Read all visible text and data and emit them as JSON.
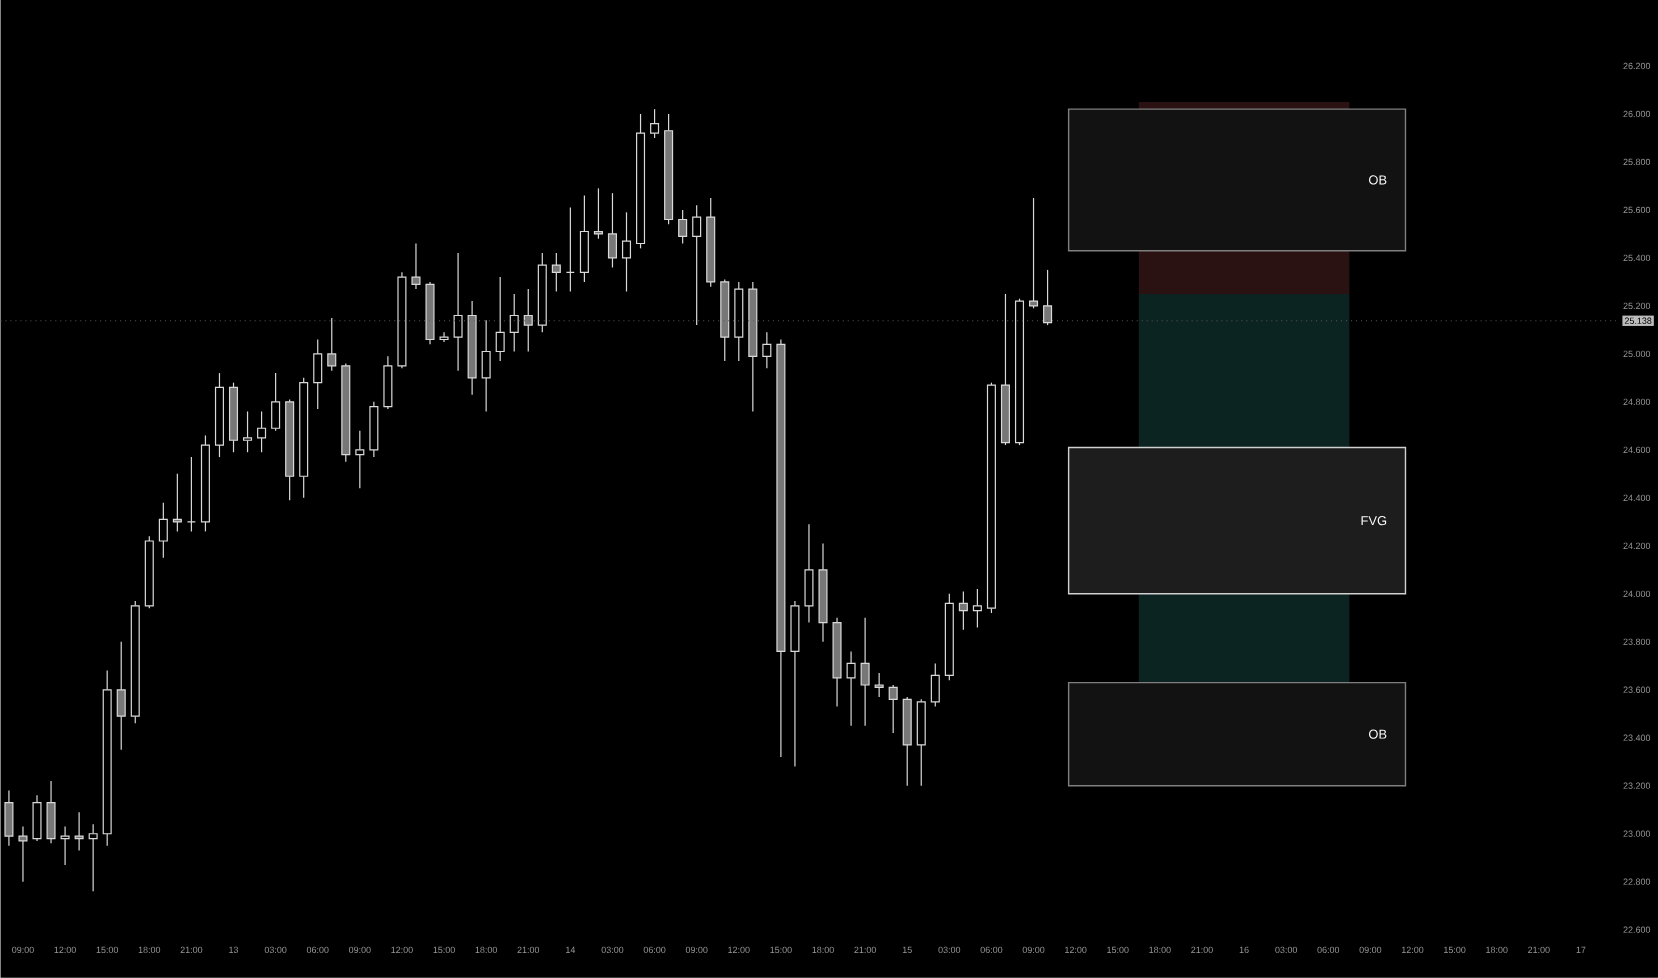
{
  "chart_data": {
    "type": "candlestick",
    "color": "#d9d9d9",
    "categories": [
      null,
      "09:00",
      null,
      null,
      "12:00",
      null,
      null,
      "15:00",
      null,
      null,
      "18:00",
      null,
      null,
      "21:00",
      null,
      null,
      "13",
      null,
      null,
      "03:00",
      null,
      null,
      "06:00",
      null,
      null,
      "09:00",
      null,
      null,
      "12:00",
      null,
      null,
      "15:00",
      null,
      null,
      "18:00",
      null,
      null,
      "21:00",
      null,
      null,
      "14",
      null,
      null,
      "03:00",
      null,
      null,
      "06:00",
      null,
      null,
      "09:00",
      null,
      null,
      "12:00",
      null,
      null,
      "15:00",
      null,
      null,
      "18:00",
      null,
      null,
      "21:00",
      null,
      null,
      "15",
      null,
      null,
      "03:00",
      null,
      null,
      "06:00",
      null,
      null,
      "09:00",
      null,
      null,
      "12:00",
      null,
      null,
      "15:00",
      null,
      null,
      "18:00",
      null,
      null,
      "21:00",
      null,
      null,
      "16",
      null,
      null,
      "03:00",
      null,
      null,
      "06:00",
      null,
      null,
      "09:00",
      null,
      null,
      "12:00",
      null,
      null,
      "15:00",
      null,
      null,
      "18:00",
      null,
      null,
      "21:00",
      null,
      null,
      "17",
      null,
      null
    ],
    "ohlc": [
      [
        23.13,
        23.18,
        22.95,
        22.99
      ],
      [
        22.99,
        23.03,
        22.8,
        22.97
      ],
      [
        22.98,
        23.16,
        22.97,
        23.13
      ],
      [
        23.13,
        23.22,
        22.96,
        22.98
      ],
      [
        22.98,
        23.03,
        22.87,
        22.99
      ],
      [
        22.99,
        23.09,
        22.93,
        22.98
      ],
      [
        22.98,
        23.04,
        22.76,
        23.0
      ],
      [
        23.0,
        23.68,
        22.95,
        23.6
      ],
      [
        23.6,
        23.8,
        23.35,
        23.49
      ],
      [
        23.49,
        23.97,
        23.46,
        23.95
      ],
      [
        23.95,
        24.24,
        23.94,
        24.22
      ],
      [
        24.22,
        24.38,
        24.15,
        24.31
      ],
      [
        24.31,
        24.5,
        24.26,
        24.3
      ],
      [
        24.3,
        24.57,
        24.26,
        24.3
      ],
      [
        24.3,
        24.66,
        24.26,
        24.62
      ],
      [
        24.62,
        24.92,
        24.57,
        24.86
      ],
      [
        24.86,
        24.88,
        24.59,
        24.64
      ],
      [
        24.64,
        24.76,
        24.59,
        24.65
      ],
      [
        24.65,
        24.76,
        24.59,
        24.69
      ],
      [
        24.69,
        24.92,
        24.68,
        24.8
      ],
      [
        24.8,
        24.81,
        24.39,
        24.49
      ],
      [
        24.49,
        24.9,
        24.4,
        24.88
      ],
      [
        24.88,
        25.06,
        24.77,
        25.0
      ],
      [
        25.0,
        25.15,
        24.93,
        24.95
      ],
      [
        24.95,
        24.96,
        24.55,
        24.58
      ],
      [
        24.58,
        24.68,
        24.44,
        24.6
      ],
      [
        24.6,
        24.8,
        24.57,
        24.78
      ],
      [
        24.78,
        24.99,
        24.77,
        24.95
      ],
      [
        24.95,
        25.34,
        24.94,
        25.32
      ],
      [
        25.32,
        25.46,
        25.27,
        25.29
      ],
      [
        25.29,
        25.3,
        25.04,
        25.06
      ],
      [
        25.06,
        25.09,
        25.05,
        25.07
      ],
      [
        25.07,
        25.42,
        24.93,
        25.16
      ],
      [
        25.16,
        25.22,
        24.83,
        24.9
      ],
      [
        24.9,
        25.14,
        24.76,
        25.01
      ],
      [
        25.01,
        25.32,
        24.97,
        25.09
      ],
      [
        25.09,
        25.25,
        25.01,
        25.16
      ],
      [
        25.16,
        25.27,
        25.01,
        25.12
      ],
      [
        25.12,
        25.42,
        25.09,
        25.37
      ],
      [
        25.37,
        25.42,
        25.26,
        25.34
      ],
      [
        25.34,
        25.61,
        25.26,
        25.34
      ],
      [
        25.34,
        25.66,
        25.3,
        25.51
      ],
      [
        25.51,
        25.69,
        25.48,
        25.5
      ],
      [
        25.5,
        25.67,
        25.36,
        25.4
      ],
      [
        25.4,
        25.59,
        25.26,
        25.47
      ],
      [
        25.46,
        26.0,
        25.44,
        25.92
      ],
      [
        25.92,
        26.02,
        25.9,
        25.96
      ],
      [
        25.93,
        26.0,
        25.54,
        25.56
      ],
      [
        25.56,
        25.6,
        25.46,
        25.49
      ],
      [
        25.49,
        25.62,
        25.12,
        25.57
      ],
      [
        25.57,
        25.65,
        25.28,
        25.3
      ],
      [
        25.3,
        25.31,
        24.97,
        25.07
      ],
      [
        25.07,
        25.3,
        24.97,
        25.27
      ],
      [
        25.27,
        25.3,
        24.76,
        24.99
      ],
      [
        24.99,
        25.09,
        24.94,
        25.04
      ],
      [
        25.04,
        25.06,
        23.32,
        23.76
      ],
      [
        23.76,
        23.97,
        23.28,
        23.95
      ],
      [
        23.95,
        24.29,
        23.88,
        24.1
      ],
      [
        24.1,
        24.21,
        23.8,
        23.88
      ],
      [
        23.88,
        23.9,
        23.53,
        23.65
      ],
      [
        23.65,
        23.76,
        23.45,
        23.71
      ],
      [
        23.71,
        23.9,
        23.45,
        23.62
      ],
      [
        23.62,
        23.67,
        23.57,
        23.61
      ],
      [
        23.61,
        23.62,
        23.42,
        23.56
      ],
      [
        23.56,
        23.57,
        23.2,
        23.37
      ],
      [
        23.37,
        23.56,
        23.2,
        23.55
      ],
      [
        23.55,
        23.71,
        23.53,
        23.66
      ],
      [
        23.66,
        24.0,
        23.64,
        23.96
      ],
      [
        23.96,
        24.01,
        23.85,
        23.93
      ],
      [
        23.93,
        24.02,
        23.86,
        23.95
      ],
      [
        23.94,
        24.88,
        23.92,
        24.87
      ],
      [
        24.87,
        25.25,
        24.62,
        24.63
      ],
      [
        24.63,
        25.23,
        24.62,
        25.22
      ],
      [
        25.22,
        25.65,
        25.19,
        25.2
      ],
      [
        25.2,
        25.35,
        25.12,
        25.13
      ],
      null,
      null,
      null,
      null,
      null,
      null,
      null,
      null,
      null,
      null,
      null,
      null,
      null,
      null,
      null,
      null,
      null,
      null,
      null,
      null,
      null,
      null,
      null,
      null,
      null,
      null,
      null,
      null,
      null,
      null,
      null,
      null,
      null,
      null,
      null,
      null,
      null,
      null,
      null,
      null
    ],
    "ylim": [
      22.6,
      26.2
    ],
    "yticks": [
      {
        "value": 22.6,
        "label": "22.600"
      },
      {
        "value": 22.8,
        "label": "22.800"
      },
      {
        "value": 23.0,
        "label": "23.000"
      },
      {
        "value": 23.2,
        "label": "23.200"
      },
      {
        "value": 23.4,
        "label": "23.400"
      },
      {
        "value": 23.6,
        "label": "23.600"
      },
      {
        "value": 23.8,
        "label": "23.800"
      },
      {
        "value": 24.0,
        "label": "24.000"
      },
      {
        "value": 24.2,
        "label": "24.200"
      },
      {
        "value": 24.4,
        "label": "24.400"
      },
      {
        "value": 24.6,
        "label": "24.600"
      },
      {
        "value": 24.8,
        "label": "24.800"
      },
      {
        "value": 25.0,
        "label": "25.000"
      },
      {
        "value": 25.2,
        "label": "25.200"
      },
      {
        "value": 25.4,
        "label": "25.400"
      },
      {
        "value": 25.6,
        "label": "25.600"
      },
      {
        "value": 25.8,
        "label": "25.800"
      },
      {
        "value": 26.0,
        "label": "26.000"
      },
      {
        "value": 26.2,
        "label": "26.200"
      }
    ],
    "bands": [
      {
        "axis": "y",
        "from": 25.25,
        "to": 26.05,
        "color": "#2a1212"
      },
      {
        "axis": "y",
        "from": 23.57,
        "to": 25.25,
        "color": "#0b2321"
      },
      {
        "axis": "y",
        "from": 25.43,
        "to": 26.02,
        "label": "OB",
        "color": "#7f7f7f"
      },
      {
        "axis": "y",
        "from": 24.0,
        "to": 24.61,
        "label": "FVG",
        "color": "#d0d0d0"
      },
      {
        "axis": "y",
        "from": 23.2,
        "to": 23.63,
        "label": "OB",
        "color": "#7f7f7f"
      }
    ],
    "ref_lines": [
      {
        "axis": "y",
        "value": 25.138,
        "label": "25.138",
        "color": "#5a5a5a",
        "line_style": "dotted"
      }
    ]
  }
}
